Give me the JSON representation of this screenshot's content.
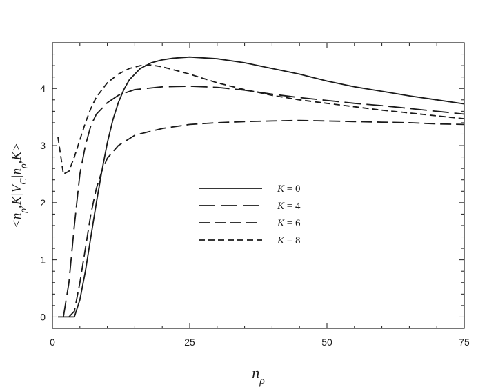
{
  "chart_data": {
    "type": "line",
    "title": "",
    "xlabel": "n_ρ",
    "ylabel": "<n_ρ,K|V_C|n_ρ,K>",
    "xlim": [
      0,
      75
    ],
    "ylim": [
      -0.2,
      4.8
    ],
    "x_ticks": [
      0,
      25,
      50,
      75
    ],
    "y_ticks": [
      0,
      1,
      2,
      3,
      4
    ],
    "grid": false,
    "legend_position": "center",
    "series": [
      {
        "name": "K = 0",
        "legend_var": "K",
        "legend_value": "= 0",
        "dash": "solid",
        "color": "#1a1a1a",
        "points": [
          [
            1,
            0
          ],
          [
            4,
            0
          ],
          [
            5,
            0.3
          ],
          [
            6,
            0.8
          ],
          [
            7,
            1.4
          ],
          [
            8,
            2.0
          ],
          [
            9,
            2.55
          ],
          [
            10,
            3.05
          ],
          [
            11,
            3.45
          ],
          [
            12,
            3.75
          ],
          [
            13,
            3.98
          ],
          [
            14,
            4.15
          ],
          [
            16,
            4.35
          ],
          [
            18,
            4.45
          ],
          [
            20,
            4.5
          ],
          [
            22,
            4.53
          ],
          [
            25,
            4.55
          ],
          [
            30,
            4.52
          ],
          [
            35,
            4.45
          ],
          [
            40,
            4.35
          ],
          [
            45,
            4.25
          ],
          [
            50,
            4.13
          ],
          [
            55,
            4.03
          ],
          [
            60,
            3.95
          ],
          [
            65,
            3.87
          ],
          [
            70,
            3.8
          ],
          [
            75,
            3.73
          ]
        ]
      },
      {
        "name": "K = 4",
        "legend_var": "K",
        "legend_value": "= 4",
        "dash": "long",
        "color": "#1a1a1a",
        "points": [
          [
            2,
            0
          ],
          [
            3,
            0.6
          ],
          [
            4,
            1.6
          ],
          [
            5,
            2.5
          ],
          [
            6,
            3.0
          ],
          [
            7,
            3.35
          ],
          [
            8,
            3.55
          ],
          [
            10,
            3.75
          ],
          [
            12,
            3.88
          ],
          [
            15,
            3.98
          ],
          [
            20,
            4.03
          ],
          [
            25,
            4.04
          ],
          [
            30,
            4.02
          ],
          [
            35,
            3.97
          ],
          [
            40,
            3.9
          ],
          [
            45,
            3.84
          ],
          [
            50,
            3.79
          ],
          [
            55,
            3.74
          ],
          [
            60,
            3.7
          ],
          [
            65,
            3.65
          ],
          [
            70,
            3.6
          ],
          [
            75,
            3.55
          ]
        ]
      },
      {
        "name": "K = 6",
        "legend_var": "K",
        "legend_value": "= 6",
        "dash": "medium",
        "color": "#1a1a1a",
        "points": [
          [
            3,
            0
          ],
          [
            4,
            0.1
          ],
          [
            5,
            0.6
          ],
          [
            6,
            1.2
          ],
          [
            7,
            1.8
          ],
          [
            8,
            2.25
          ],
          [
            9,
            2.55
          ],
          [
            10,
            2.78
          ],
          [
            12,
            3.0
          ],
          [
            15,
            3.18
          ],
          [
            20,
            3.3
          ],
          [
            25,
            3.37
          ],
          [
            30,
            3.4
          ],
          [
            35,
            3.42
          ],
          [
            40,
            3.43
          ],
          [
            45,
            3.44
          ],
          [
            50,
            3.43
          ],
          [
            55,
            3.42
          ],
          [
            60,
            3.41
          ],
          [
            65,
            3.4
          ],
          [
            70,
            3.38
          ],
          [
            75,
            3.37
          ]
        ]
      },
      {
        "name": "K = 8",
        "legend_var": "K",
        "legend_value": "= 8",
        "dash": "short",
        "color": "#1a1a1a",
        "points": [
          [
            1,
            3.15
          ],
          [
            2,
            2.5
          ],
          [
            3,
            2.55
          ],
          [
            4,
            2.8
          ],
          [
            5,
            3.1
          ],
          [
            6,
            3.4
          ],
          [
            7,
            3.65
          ],
          [
            8,
            3.85
          ],
          [
            10,
            4.1
          ],
          [
            12,
            4.25
          ],
          [
            14,
            4.35
          ],
          [
            16,
            4.4
          ],
          [
            18,
            4.41
          ],
          [
            20,
            4.38
          ],
          [
            25,
            4.25
          ],
          [
            30,
            4.1
          ],
          [
            35,
            3.98
          ],
          [
            40,
            3.88
          ],
          [
            45,
            3.8
          ],
          [
            50,
            3.74
          ],
          [
            55,
            3.68
          ],
          [
            60,
            3.62
          ],
          [
            65,
            3.57
          ],
          [
            70,
            3.52
          ],
          [
            75,
            3.47
          ]
        ]
      }
    ]
  }
}
